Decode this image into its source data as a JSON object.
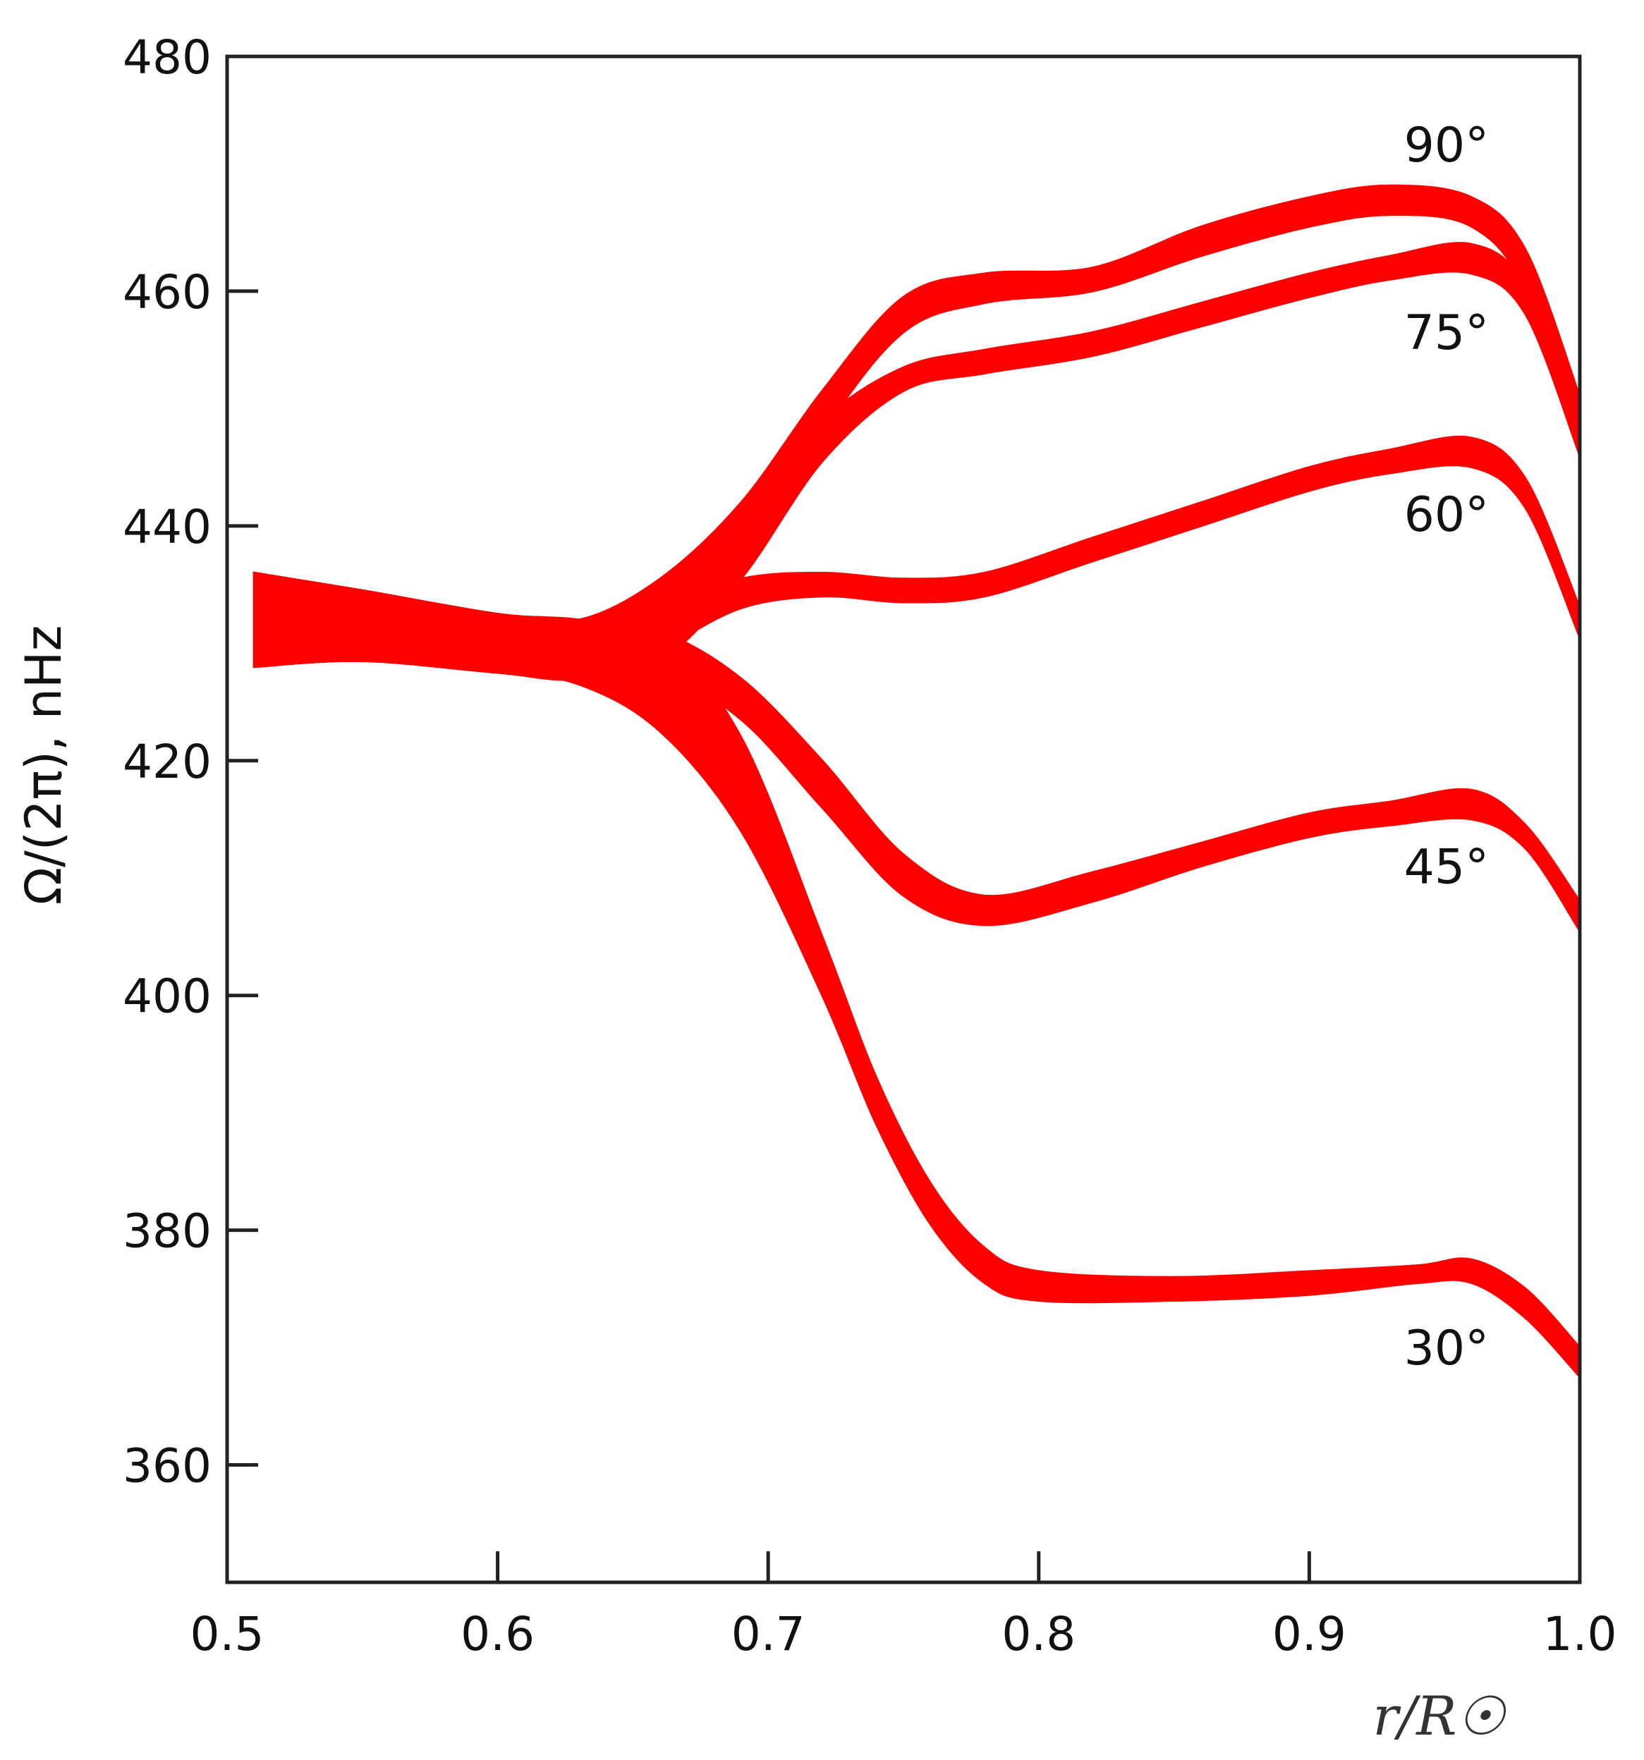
{
  "chart_data": {
    "type": "area",
    "xlabel": "r/R☉",
    "ylabel": "Ω/(2π), nHz",
    "xlim": [
      0.5,
      1.0
    ],
    "ylim": [
      350,
      480
    ],
    "xticks": [
      "0.5",
      "0.6",
      "0.7",
      "0.8",
      "0.9",
      "1.0"
    ],
    "yticks": [
      "360",
      "380",
      "400",
      "420",
      "440",
      "460",
      "480"
    ],
    "grid": false,
    "color": "#ff0000",
    "series": [
      {
        "name": "90°",
        "x": [
          0.51,
          0.55,
          0.6,
          0.63,
          0.66,
          0.69,
          0.72,
          0.75,
          0.78,
          0.82,
          0.86,
          0.9,
          0.93,
          0.96,
          0.98,
          1.0
        ],
        "upper": [
          436.0,
          434.5,
          432.5,
          432.0,
          435.5,
          442.0,
          451.5,
          459.5,
          461.5,
          462.0,
          465.5,
          468.0,
          469.0,
          468.0,
          463.5,
          451.0
        ],
        "lower": [
          428.0,
          428.5,
          427.5,
          427.0,
          428.5,
          437.0,
          448.0,
          456.5,
          459.0,
          460.0,
          463.0,
          465.5,
          466.5,
          465.5,
          460.0,
          446.0
        ]
      },
      {
        "name": "75°",
        "x": [
          0.51,
          0.55,
          0.6,
          0.63,
          0.66,
          0.69,
          0.72,
          0.75,
          0.78,
          0.82,
          0.86,
          0.9,
          0.93,
          0.96,
          0.98,
          1.0
        ],
        "upper": [
          436.0,
          434.5,
          432.5,
          432.0,
          435.0,
          441.0,
          449.0,
          453.5,
          455.0,
          456.5,
          459.0,
          461.5,
          463.0,
          464.0,
          460.5,
          449.0
        ],
        "lower": [
          428.0,
          428.5,
          427.5,
          427.0,
          428.5,
          435.5,
          445.5,
          451.5,
          453.0,
          454.5,
          457.0,
          459.5,
          461.0,
          461.5,
          458.0,
          446.0
        ]
      },
      {
        "name": "60°",
        "x": [
          0.51,
          0.55,
          0.6,
          0.63,
          0.66,
          0.69,
          0.72,
          0.75,
          0.78,
          0.82,
          0.86,
          0.9,
          0.93,
          0.96,
          0.98,
          1.0
        ],
        "upper": [
          436.0,
          434.5,
          432.5,
          432.0,
          433.0,
          435.5,
          436.0,
          435.5,
          436.0,
          439.0,
          442.0,
          445.0,
          446.5,
          447.5,
          444.0,
          433.0
        ],
        "lower": [
          428.0,
          428.5,
          427.5,
          427.0,
          429.5,
          433.0,
          434.0,
          433.5,
          434.0,
          437.0,
          440.0,
          443.0,
          444.5,
          445.0,
          441.5,
          430.5
        ]
      },
      {
        "name": "45°",
        "x": [
          0.51,
          0.55,
          0.6,
          0.63,
          0.66,
          0.69,
          0.72,
          0.75,
          0.78,
          0.82,
          0.86,
          0.9,
          0.93,
          0.96,
          0.98,
          1.0
        ],
        "upper": [
          436.0,
          434.5,
          432.5,
          432.0,
          431.0,
          427.0,
          420.0,
          412.0,
          408.5,
          410.5,
          413.0,
          415.5,
          416.5,
          417.5,
          414.5,
          408.0
        ],
        "lower": [
          428.0,
          428.5,
          427.5,
          427.0,
          427.5,
          423.5,
          416.0,
          408.5,
          406.0,
          408.0,
          411.0,
          413.5,
          414.5,
          415.0,
          412.5,
          405.5
        ]
      },
      {
        "name": "30°",
        "x": [
          0.51,
          0.55,
          0.6,
          0.63,
          0.66,
          0.69,
          0.72,
          0.74,
          0.76,
          0.78,
          0.8,
          0.85,
          0.9,
          0.94,
          0.96,
          0.98,
          1.0
        ],
        "upper": [
          436.0,
          434.5,
          432.5,
          432.0,
          430.5,
          422.0,
          405.0,
          393.0,
          384.0,
          378.5,
          376.5,
          376.0,
          376.5,
          377.0,
          377.5,
          375.0,
          370.0
        ],
        "lower": [
          428.0,
          428.5,
          427.5,
          426.5,
          422.5,
          414.0,
          400.0,
          389.0,
          380.5,
          375.5,
          374.0,
          374.0,
          374.5,
          375.5,
          375.5,
          372.5,
          367.5
        ]
      }
    ],
    "annotations": [
      "90°",
      "75°",
      "60°",
      "45°",
      "30°"
    ]
  }
}
